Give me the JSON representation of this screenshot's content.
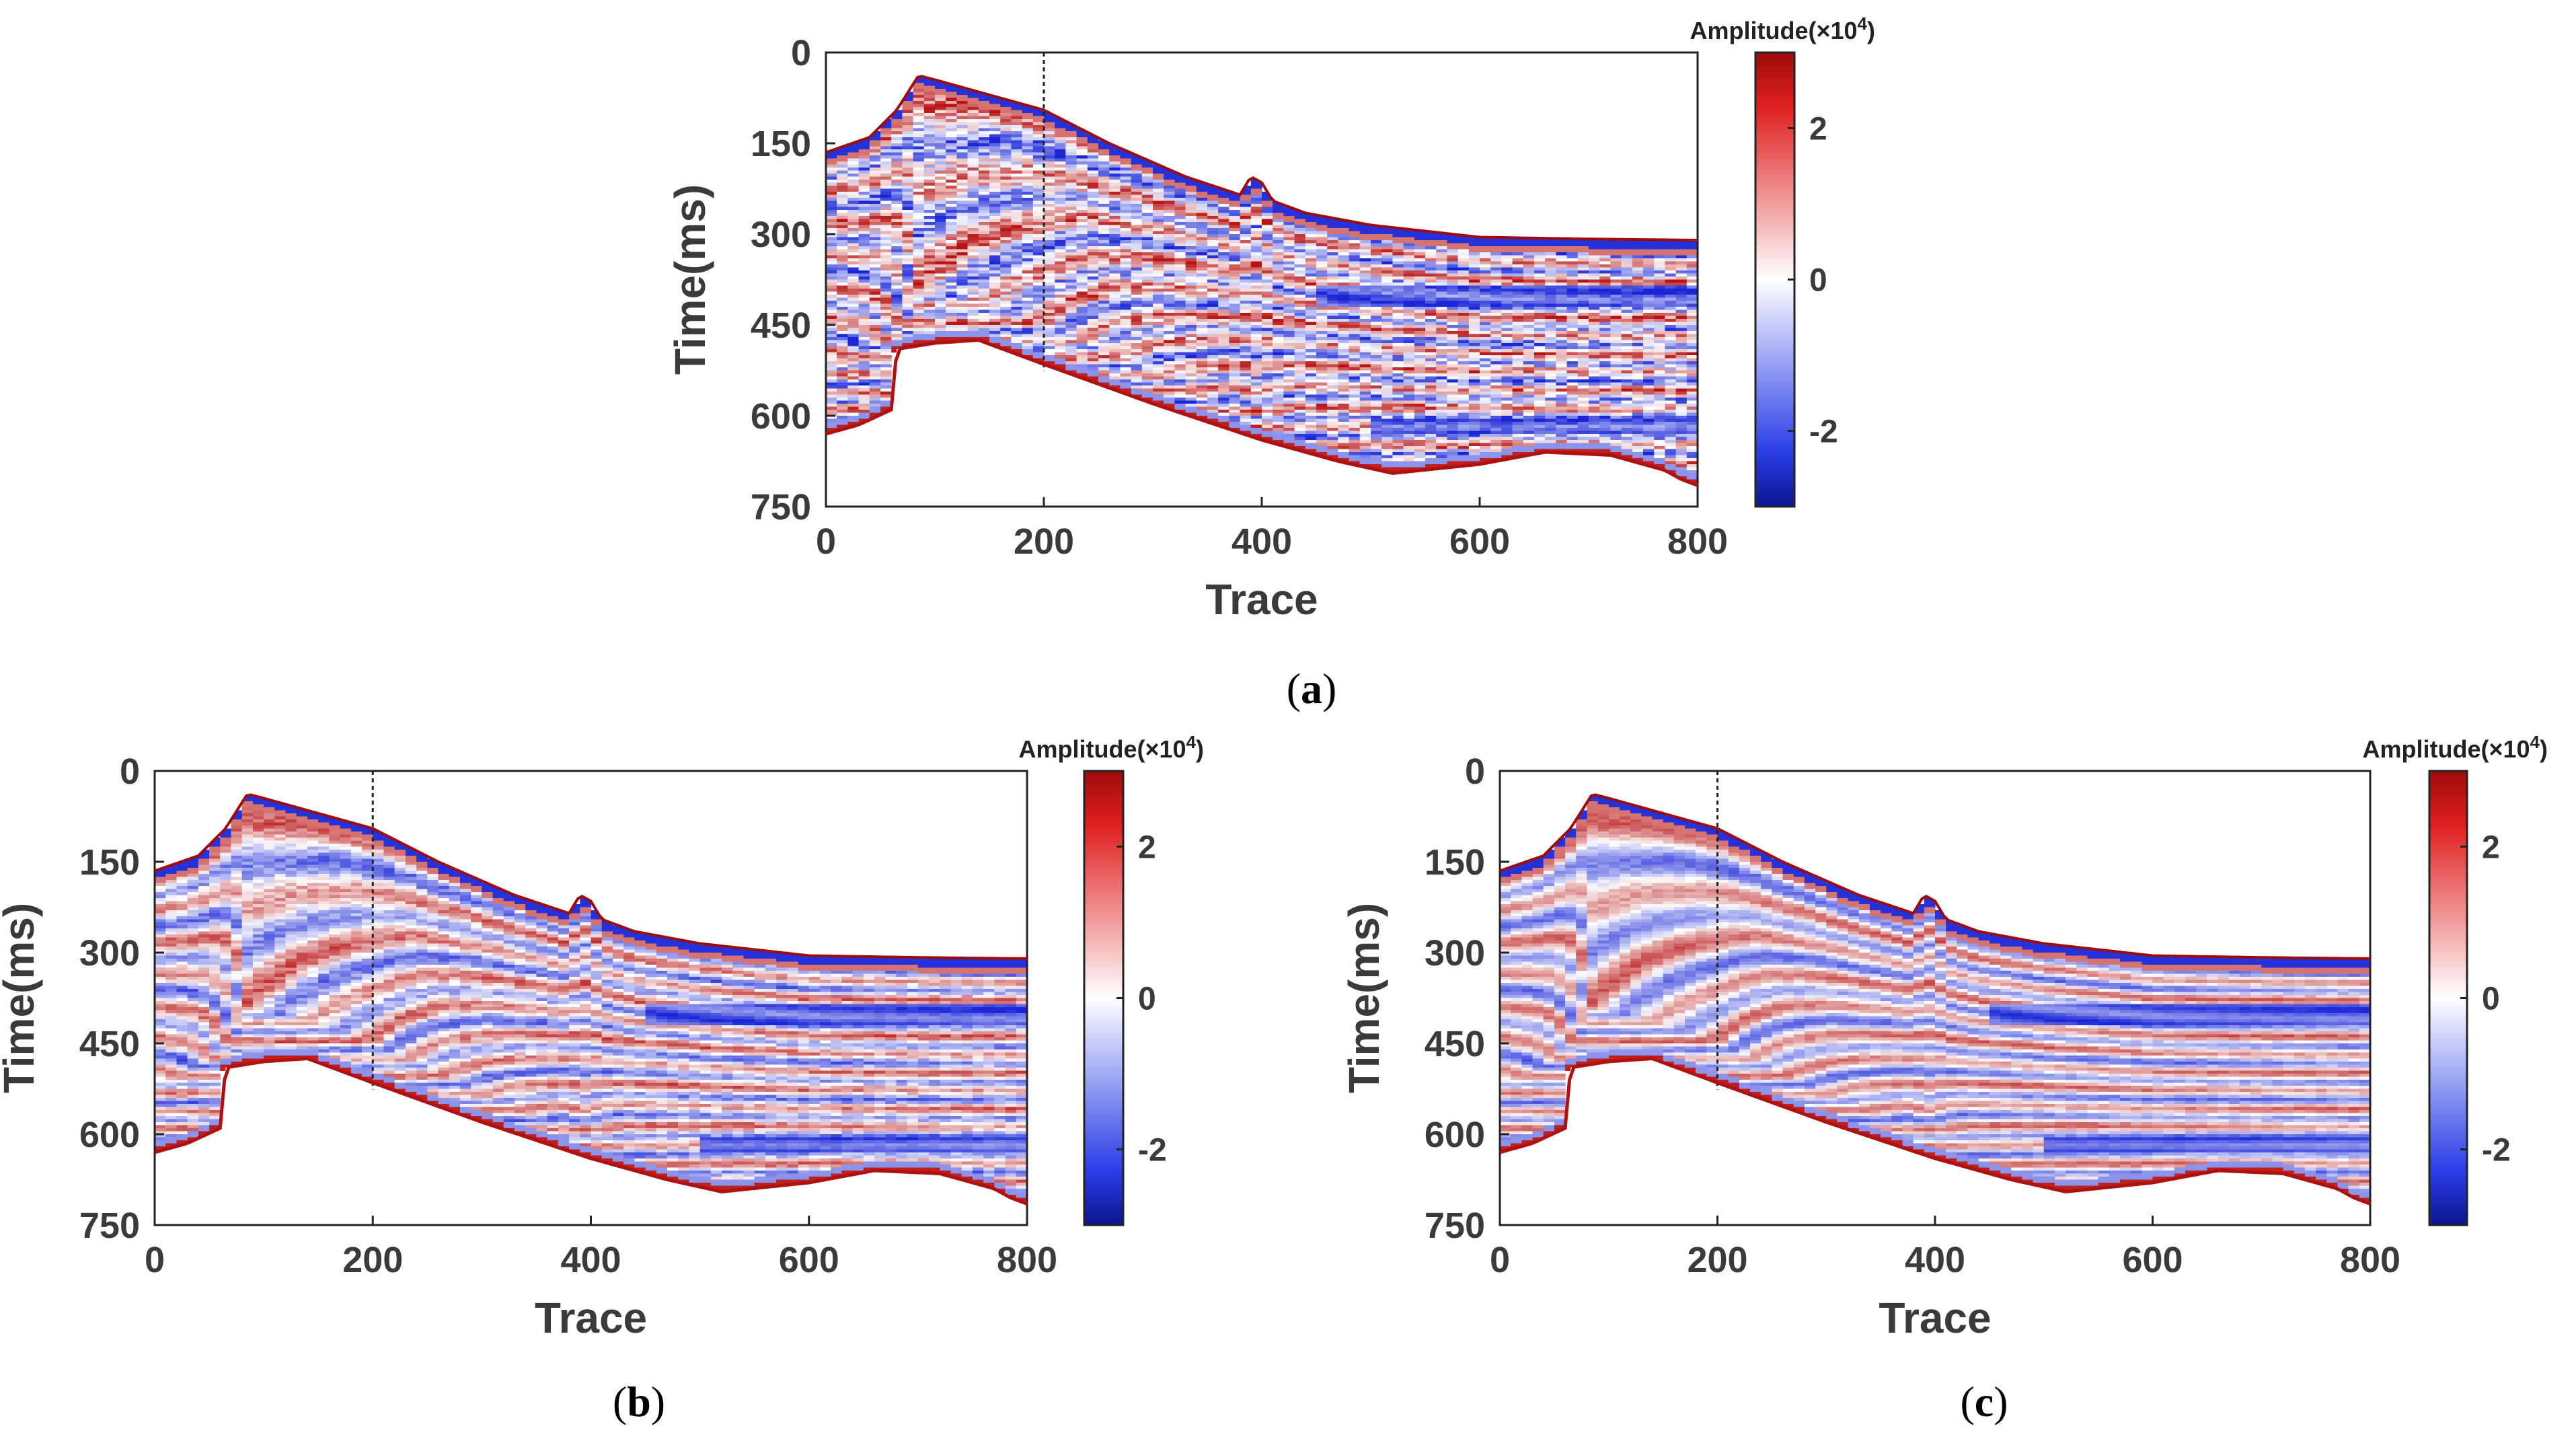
{
  "colors": {
    "red": "#c01818",
    "blue": "#1a2ec8",
    "white": "#ffffff",
    "text": "#3a3a3a",
    "dashed_line": "#222222"
  },
  "chart_data": [
    {
      "id": "a",
      "type": "heatmap",
      "subtype": "seismic section",
      "caption_letter": "a",
      "xlabel": "Trace",
      "ylabel": "Time(ms)",
      "xlim": [
        0,
        800
      ],
      "ylim": [
        0,
        750
      ],
      "y_reversed": true,
      "xticks": [
        0,
        200,
        400,
        600,
        800
      ],
      "yticks": [
        0,
        150,
        300,
        450,
        600,
        750
      ],
      "marker_trace": 200,
      "colorbar": {
        "title_prefix": "Amplitude(×10",
        "title_exp": "4",
        "title_suffix": ")",
        "range": [
          -3,
          3
        ],
        "ticks": [
          2,
          0,
          -2
        ]
      },
      "noise_level": 0.8,
      "top_boundary_ms": [
        [
          0,
          165
        ],
        [
          40,
          140
        ],
        [
          65,
          95
        ],
        [
          85,
          38
        ],
        [
          100,
          45
        ],
        [
          200,
          95
        ],
        [
          260,
          150
        ],
        [
          330,
          205
        ],
        [
          380,
          235
        ],
        [
          390,
          205
        ],
        [
          400,
          215
        ],
        [
          410,
          245
        ],
        [
          440,
          265
        ],
        [
          500,
          285
        ],
        [
          600,
          305
        ],
        [
          700,
          308
        ],
        [
          800,
          310
        ]
      ],
      "bottom_boundary_ms": [
        [
          0,
          630
        ],
        [
          30,
          615
        ],
        [
          60,
          590
        ],
        [
          65,
          490
        ],
        [
          100,
          480
        ],
        [
          140,
          475
        ],
        [
          200,
          515
        ],
        [
          300,
          580
        ],
        [
          400,
          640
        ],
        [
          470,
          675
        ],
        [
          520,
          695
        ],
        [
          600,
          680
        ],
        [
          660,
          660
        ],
        [
          720,
          665
        ],
        [
          770,
          690
        ],
        [
          785,
          705
        ],
        [
          800,
          715
        ]
      ]
    },
    {
      "id": "b",
      "type": "heatmap",
      "subtype": "seismic section",
      "caption_letter": "b",
      "xlabel": "Trace",
      "ylabel": "Time(ms)",
      "xlim": [
        0,
        800
      ],
      "ylim": [
        0,
        750
      ],
      "y_reversed": true,
      "xticks": [
        0,
        200,
        400,
        600,
        800
      ],
      "yticks": [
        0,
        150,
        300,
        450,
        600,
        750
      ],
      "marker_trace": 200,
      "colorbar": {
        "title_prefix": "Amplitude(×10",
        "title_exp": "4",
        "title_suffix": ")",
        "range": [
          -3,
          3
        ],
        "ticks": [
          2,
          0,
          -2
        ]
      },
      "noise_level": 0.35,
      "top_boundary_ms": [
        [
          0,
          165
        ],
        [
          40,
          140
        ],
        [
          65,
          95
        ],
        [
          85,
          38
        ],
        [
          100,
          45
        ],
        [
          200,
          95
        ],
        [
          260,
          150
        ],
        [
          330,
          205
        ],
        [
          380,
          235
        ],
        [
          390,
          205
        ],
        [
          400,
          215
        ],
        [
          410,
          245
        ],
        [
          440,
          265
        ],
        [
          500,
          285
        ],
        [
          600,
          305
        ],
        [
          700,
          308
        ],
        [
          800,
          310
        ]
      ],
      "bottom_boundary_ms": [
        [
          0,
          630
        ],
        [
          30,
          615
        ],
        [
          60,
          590
        ],
        [
          65,
          490
        ],
        [
          100,
          480
        ],
        [
          140,
          475
        ],
        [
          200,
          515
        ],
        [
          300,
          580
        ],
        [
          400,
          640
        ],
        [
          470,
          675
        ],
        [
          520,
          695
        ],
        [
          600,
          680
        ],
        [
          660,
          660
        ],
        [
          720,
          665
        ],
        [
          770,
          690
        ],
        [
          785,
          705
        ],
        [
          800,
          715
        ]
      ]
    },
    {
      "id": "c",
      "type": "heatmap",
      "subtype": "seismic section",
      "caption_letter": "c",
      "xlabel": "Trace",
      "ylabel": "Time(ms)",
      "xlim": [
        0,
        800
      ],
      "ylim": [
        0,
        750
      ],
      "y_reversed": true,
      "xticks": [
        0,
        200,
        400,
        600,
        800
      ],
      "yticks": [
        0,
        150,
        300,
        450,
        600,
        750
      ],
      "marker_trace": 200,
      "colorbar": {
        "title_prefix": "Amplitude(×10",
        "title_exp": "4",
        "title_suffix": ")",
        "range": [
          -3,
          3
        ],
        "ticks": [
          2,
          0,
          -2
        ]
      },
      "noise_level": 0.2,
      "top_boundary_ms": [
        [
          0,
          165
        ],
        [
          40,
          140
        ],
        [
          65,
          95
        ],
        [
          85,
          38
        ],
        [
          100,
          45
        ],
        [
          200,
          95
        ],
        [
          260,
          150
        ],
        [
          330,
          205
        ],
        [
          380,
          235
        ],
        [
          390,
          205
        ],
        [
          400,
          215
        ],
        [
          410,
          245
        ],
        [
          440,
          265
        ],
        [
          500,
          285
        ],
        [
          600,
          305
        ],
        [
          700,
          308
        ],
        [
          800,
          310
        ]
      ],
      "bottom_boundary_ms": [
        [
          0,
          630
        ],
        [
          30,
          615
        ],
        [
          60,
          590
        ],
        [
          65,
          490
        ],
        [
          100,
          480
        ],
        [
          140,
          475
        ],
        [
          200,
          515
        ],
        [
          300,
          580
        ],
        [
          400,
          640
        ],
        [
          470,
          675
        ],
        [
          520,
          695
        ],
        [
          600,
          680
        ],
        [
          660,
          660
        ],
        [
          720,
          665
        ],
        [
          770,
          690
        ],
        [
          785,
          705
        ],
        [
          800,
          715
        ]
      ]
    }
  ]
}
